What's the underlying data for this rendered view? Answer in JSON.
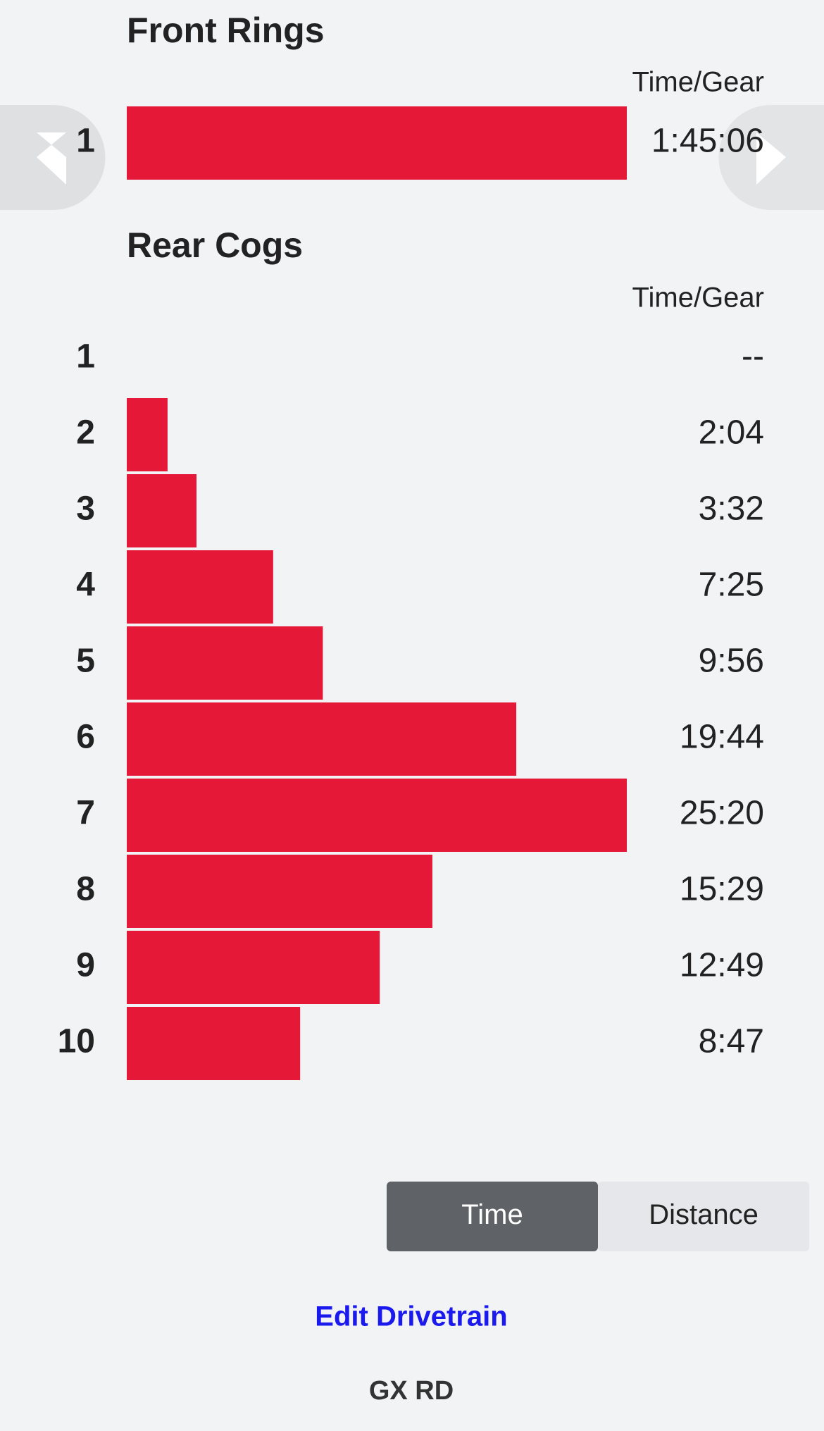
{
  "chart_data": [
    {
      "type": "bar",
      "title": "Front Rings",
      "value_header": "Time/Gear",
      "color": "#e51937",
      "categories": [
        "1"
      ],
      "values": [
        6306
      ],
      "value_labels": [
        "1:45:06"
      ]
    },
    {
      "type": "bar",
      "title": "Rear Cogs",
      "value_header": "Time/Gear",
      "color": "#e51937",
      "categories": [
        "1",
        "2",
        "3",
        "4",
        "5",
        "6",
        "7",
        "8",
        "9",
        "10"
      ],
      "values": [
        null,
        124,
        212,
        445,
        596,
        1184,
        1520,
        929,
        769,
        527
      ],
      "value_labels": [
        "--",
        "2:04",
        "3:32",
        "7:25",
        "9:56",
        "19:44",
        "25:20",
        "15:29",
        "12:49",
        "8:47"
      ]
    }
  ],
  "toggle": {
    "options": [
      "Time",
      "Distance"
    ],
    "selected": 0
  },
  "link": "Edit Drivetrain",
  "footer": "GX RD"
}
